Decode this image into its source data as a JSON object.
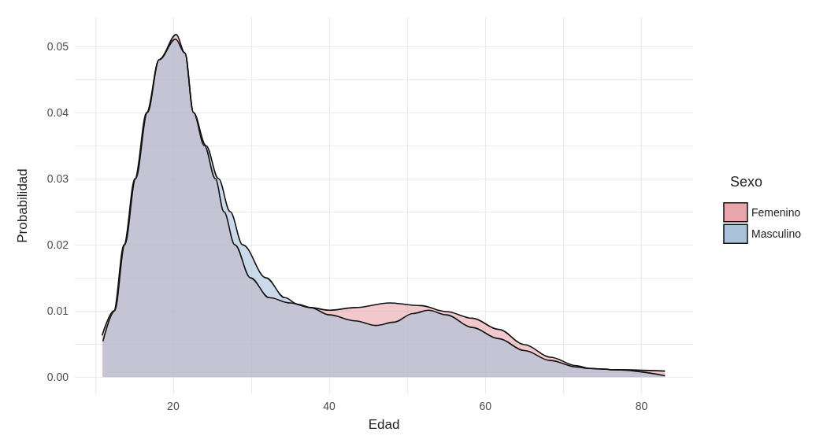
{
  "chart_data": {
    "type": "area",
    "xlabel": "Edad",
    "ylabel": "Probabilidad",
    "legend_title": "Sexo",
    "legend": "right",
    "grid": true,
    "marker": "none",
    "line_style": "solid",
    "xlim": [
      7.4,
      86.6
    ],
    "xticks": [
      {
        "value": 10,
        "label": null
      },
      20,
      {
        "value": 30,
        "label": null
      },
      40,
      {
        "value": 50,
        "label": null
      },
      60,
      {
        "value": 70,
        "label": null
      },
      80
    ],
    "ylim": [
      -0.0026,
      0.0544
    ],
    "yticks": [
      {
        "value": 0,
        "label": "0.00"
      },
      {
        "value": 0.005,
        "label": null
      },
      {
        "value": 0.01,
        "label": "0.01"
      },
      {
        "value": 0.015,
        "label": null
      },
      {
        "value": 0.02,
        "label": "0.02"
      },
      {
        "value": 0.025,
        "label": null
      },
      {
        "value": 0.03,
        "label": "0.03"
      },
      {
        "value": 0.035,
        "label": null
      },
      {
        "value": 0.04,
        "label": "0.04"
      },
      {
        "value": 0.045,
        "label": null
      },
      {
        "value": 0.05,
        "label": "0.05"
      }
    ],
    "series": [
      {
        "name": "Femenino",
        "color": "#e8a5ac",
        "x": [
          10.9,
          12.4,
          13.7,
          15.1,
          16.6,
          18.2,
          20.4,
          21.5,
          22.6,
          24,
          25.4,
          26.5,
          27.9,
          29.9,
          32.3,
          35,
          37.6,
          40,
          43.3,
          47.7,
          51.7,
          55,
          58.3,
          61.7,
          65,
          68.3,
          71.7,
          73.3,
          76.7,
          83
        ],
        "values": [
          0.0063,
          0.01,
          0.02,
          0.03,
          0.04,
          0.048,
          0.0518,
          0.049,
          0.04,
          0.035,
          0.03,
          0.025,
          0.02,
          0.015,
          0.012,
          0.0112,
          0.0105,
          0.0101,
          0.0105,
          0.0112,
          0.0108,
          0.0099,
          0.0089,
          0.0072,
          0.0049,
          0.003,
          0.0017,
          0.0013,
          0.0011,
          0.0009
        ]
      },
      {
        "name": "Masculino",
        "color": "#a9c2da",
        "x": [
          11,
          12.5,
          13.8,
          15.2,
          16.7,
          18.2,
          20.3,
          21.5,
          22.6,
          24.2,
          25.8,
          27.3,
          28.9,
          31.9,
          34.3,
          36,
          37.6,
          40,
          43.3,
          46,
          48.3,
          50.7,
          52.7,
          55,
          58.3,
          61.7,
          65,
          68.3,
          71.7,
          73.3,
          76.7,
          83
        ],
        "values": [
          0.0054,
          0.01,
          0.02,
          0.03,
          0.04,
          0.048,
          0.0511,
          0.049,
          0.04,
          0.035,
          0.03,
          0.025,
          0.02,
          0.015,
          0.012,
          0.011,
          0.0105,
          0.0094,
          0.0085,
          0.0078,
          0.0083,
          0.0096,
          0.0101,
          0.0094,
          0.0075,
          0.0058,
          0.004,
          0.0025,
          0.0015,
          0.0013,
          0.0011,
          0.0002
        ]
      }
    ]
  }
}
